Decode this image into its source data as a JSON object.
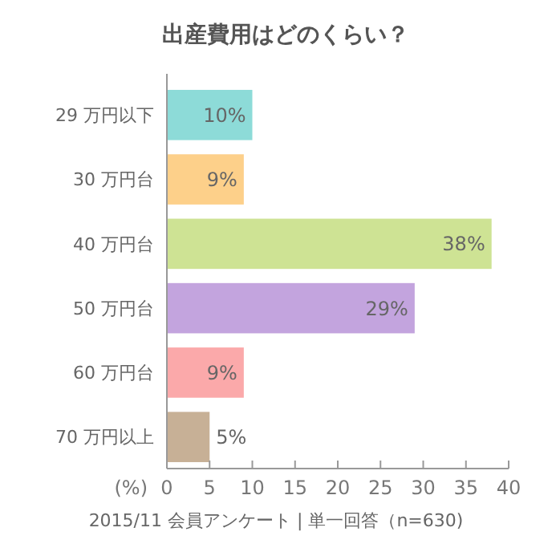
{
  "chart_data": {
    "type": "bar",
    "orientation": "horizontal",
    "title": "出産費用はどのくらい？",
    "xlabel": "(%)",
    "categories": [
      "29 万円以下",
      "30 万円台",
      "40 万円台",
      "50 万円台",
      "60 万円台",
      "70 万円以上"
    ],
    "values": [
      10,
      9,
      38,
      29,
      9,
      5
    ],
    "colors": [
      "#8ddbd8",
      "#fdd08a",
      "#cee394",
      "#c3a4de",
      "#fba9aa",
      "#c7b096"
    ],
    "value_labels": [
      "10%",
      "9%",
      "38%",
      "29%",
      "9%",
      "5%"
    ],
    "xlim": [
      0,
      40
    ],
    "xticks": [
      0,
      5,
      10,
      15,
      20,
      25,
      30,
      35,
      40
    ],
    "grid": false,
    "annotations": [
      "2015/11 会員アンケート | 単一回答（n=630)"
    ]
  }
}
